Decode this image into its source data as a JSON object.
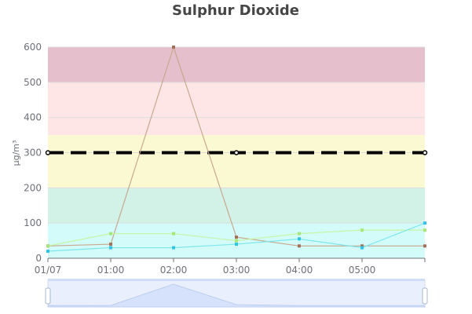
{
  "chart_data": {
    "type": "line",
    "title": "Sulphur Dioxide",
    "xlabel": "",
    "ylabel": "µg/m³",
    "categories": [
      "01/07",
      "01:00",
      "02:00",
      "03:00",
      "04:00",
      "05:00",
      ""
    ],
    "x_tick_labels": [
      "01/07",
      "01:00",
      "02:00",
      "03:00",
      "04:00",
      "05:00"
    ],
    "y_ticks": [
      0,
      100,
      200,
      300,
      400,
      500,
      600
    ],
    "ylim": [
      0,
      600
    ],
    "grid": true,
    "legend": "none",
    "bands": [
      {
        "from": 0,
        "to": 100,
        "color": "#d2fbf9"
      },
      {
        "from": 100,
        "to": 200,
        "color": "#d2f2e8"
      },
      {
        "from": 200,
        "to": 350,
        "color": "#fbf9d2"
      },
      {
        "from": 350,
        "to": 500,
        "color": "#ffe6e6"
      },
      {
        "from": 500,
        "to": 600,
        "color": "#e5bfcb"
      }
    ],
    "threshold": {
      "value": 300,
      "color": "#000000",
      "style": "dashed"
    },
    "series": [
      {
        "color": "#c8a88f",
        "marker_color": "#a3715a",
        "values": [
          35,
          40,
          600,
          60,
          35,
          35,
          35
        ]
      },
      {
        "color": "#c6f5a8",
        "marker_color": "#a5e878",
        "values": [
          35,
          70,
          70,
          50,
          70,
          80,
          80
        ]
      },
      {
        "color": "#7de6ec",
        "marker_color": "#2fc4e6",
        "values": [
          20,
          30,
          30,
          40,
          55,
          30,
          100
        ]
      }
    ],
    "data_zoom": {
      "start": 0,
      "end": 100,
      "color": "#d6e2fb"
    }
  }
}
